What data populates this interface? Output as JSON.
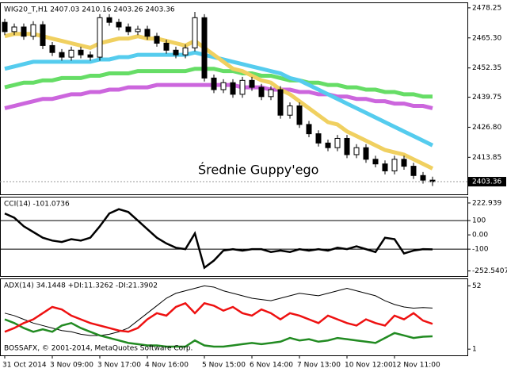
{
  "chart_data": [
    {
      "type": "candlestick",
      "title": "WIG20_T,H1  2407.03 2410.16 2403.26 2403.36",
      "annotation": "Średnie Guppy'ego",
      "ylim": [
        2397.9,
        2480.6
      ],
      "yticks": [
        2478.25,
        {
          "value": 2465.3,
          "label": "2465.30"
        },
        2452.35,
        2439.75,
        {
          "value": 2426.8,
          "label": "2426.80"
        },
        2413.85
      ],
      "open": [
        2472,
        2468,
        2470,
        2466,
        2471,
        2462,
        2459,
        2457,
        2460,
        2458,
        2457,
        2474,
        2472,
        2470,
        2468,
        2469,
        2466,
        2463,
        2460,
        2458,
        2461,
        2474,
        2448,
        2443,
        2446,
        2441,
        2447,
        2444,
        2440,
        2443,
        2432,
        2436,
        2428,
        2424,
        2420,
        2418,
        2422,
        2415,
        2418,
        2413,
        2411,
        2408,
        2413,
        2410,
        2406,
        2404
      ],
      "high": [
        2473.5,
        2471.5,
        2471.5,
        2472.5,
        2472.5,
        2463.5,
        2460.5,
        2461.5,
        2461.5,
        2459.5,
        2475.5,
        2475.5,
        2473.5,
        2471.5,
        2470.5,
        2470.5,
        2467.5,
        2464.5,
        2461.5,
        2462.5,
        2476.5,
        2475.5,
        2449.5,
        2447.5,
        2447.5,
        2448.5,
        2448.5,
        2445.5,
        2444.5,
        2444.5,
        2437.5,
        2437.5,
        2429.5,
        2425.5,
        2421.5,
        2423.5,
        2423.5,
        2419.5,
        2419.5,
        2414.5,
        2412.5,
        2414.5,
        2414.5,
        2411.5,
        2407.5,
        2405.5
      ],
      "low": [
        2466.5,
        2466.5,
        2464.5,
        2464.5,
        2460.5,
        2457.5,
        2455.5,
        2455.5,
        2456.5,
        2455.5,
        2455.5,
        2470.5,
        2468.5,
        2466.5,
        2466.5,
        2464.5,
        2461.5,
        2458.5,
        2456.5,
        2456.5,
        2459.5,
        2446.5,
        2441.5,
        2441.5,
        2439.5,
        2439.5,
        2442.5,
        2438.5,
        2438.5,
        2430.5,
        2430.5,
        2426.5,
        2422.5,
        2418.5,
        2416.5,
        2416.5,
        2413.5,
        2413.5,
        2411.5,
        2409.5,
        2406.5,
        2406.5,
        2408.5,
        2404.5,
        2402.5,
        2401.5
      ],
      "close": [
        2468,
        2470,
        2466,
        2471,
        2462,
        2459,
        2457,
        2460,
        2458,
        2457,
        2474,
        2472,
        2470,
        2468,
        2469,
        2466,
        2463,
        2460,
        2458,
        2461,
        2474,
        2448,
        2443,
        2446,
        2441,
        2447,
        2444,
        2440,
        2443,
        2432,
        2436,
        2428,
        2424,
        2420,
        2418,
        2422,
        2415,
        2418,
        2413,
        2411,
        2408,
        2413,
        2410,
        2406,
        2404,
        2403.36
      ],
      "ribbons": [
        {
          "color": "#cc66dd",
          "values": [
            2435,
            2436,
            2437,
            2438,
            2439,
            2439,
            2440,
            2441,
            2441,
            2442,
            2442,
            2443,
            2443,
            2444,
            2444,
            2444,
            2445,
            2445,
            2445,
            2445,
            2445,
            2445,
            2445,
            2445,
            2445,
            2444,
            2444,
            2444,
            2443,
            2443,
            2443,
            2442,
            2442,
            2441,
            2441,
            2440,
            2440,
            2439,
            2439,
            2438,
            2438,
            2437,
            2437,
            2436,
            2436,
            2435
          ]
        },
        {
          "color": "#66dd66",
          "values": [
            2444,
            2445,
            2446,
            2446,
            2447,
            2447,
            2448,
            2448,
            2448,
            2449,
            2449,
            2450,
            2450,
            2450,
            2451,
            2451,
            2451,
            2451,
            2451,
            2451,
            2452,
            2452,
            2452,
            2451,
            2451,
            2450,
            2450,
            2449,
            2449,
            2448,
            2447,
            2447,
            2446,
            2446,
            2445,
            2445,
            2444,
            2444,
            2443,
            2443,
            2442,
            2442,
            2441,
            2441,
            2440,
            2440
          ]
        },
        {
          "color": "#55ccee",
          "values": [
            2452,
            2453,
            2454,
            2455,
            2455,
            2455,
            2455,
            2455,
            2455,
            2455,
            2456,
            2456,
            2457,
            2457,
            2458,
            2458,
            2458,
            2458,
            2458,
            2458,
            2459,
            2458,
            2457,
            2456,
            2455,
            2454,
            2453,
            2452,
            2451,
            2450,
            2448,
            2447,
            2445,
            2443,
            2441,
            2439,
            2437,
            2435,
            2433,
            2431,
            2429,
            2427,
            2425,
            2423,
            2421,
            2419
          ]
        },
        {
          "color": "#f0d060",
          "values": [
            2466,
            2467,
            2467,
            2467,
            2466,
            2465,
            2464,
            2463,
            2462,
            2461,
            2463,
            2464,
            2465,
            2465,
            2466,
            2465,
            2465,
            2464,
            2463,
            2462,
            2464,
            2461,
            2458,
            2455,
            2452,
            2451,
            2449,
            2447,
            2446,
            2443,
            2441,
            2438,
            2435,
            2432,
            2429,
            2428,
            2425,
            2423,
            2421,
            2419,
            2417,
            2416,
            2415,
            2413,
            2411,
            2409
          ]
        }
      ]
    },
    {
      "type": "line",
      "title": "CCI(14) -101.0736",
      "ylim": [
        -288,
        267
      ],
      "yticks": [
        222.939,
        100,
        {
          "value": 0,
          "label": "0.00"
        },
        -100,
        -252.5407
      ],
      "levels": [
        100,
        -100
      ],
      "series": [
        {
          "color": "#000000",
          "values": [
            150,
            120,
            60,
            20,
            -20,
            -40,
            -50,
            -30,
            -40,
            -20,
            60,
            150,
            180,
            160,
            100,
            40,
            -20,
            -60,
            -90,
            -100,
            10,
            -230,
            -180,
            -110,
            -100,
            -110,
            -100,
            -100,
            -120,
            -110,
            -120,
            -100,
            -110,
            -100,
            -110,
            -90,
            -100,
            -80,
            -100,
            -120,
            -20,
            -30,
            -130,
            -110,
            -100,
            -101.0736
          ]
        }
      ]
    },
    {
      "type": "line",
      "title": "ADX(14) 34.1448 +DI:11.3262 -DI:21.3902",
      "footer": "BOSSAFX, © 2001-2014, MetaQuotes Software Corp.",
      "ylim": [
        -4,
        58
      ],
      "yticks": [
        52,
        1
      ],
      "categories": [
        "31 Oct 2014",
        null,
        null,
        null,
        null,
        "3 Nov 09:00",
        null,
        null,
        null,
        null,
        "3 Nov 17:00",
        null,
        null,
        null,
        null,
        "4 Nov 16:00",
        null,
        null,
        null,
        null,
        null,
        "5 Nov 15:00",
        null,
        null,
        null,
        null,
        "6 Nov 14:00",
        null,
        null,
        null,
        null,
        "7 Nov 13:00",
        null,
        null,
        null,
        null,
        "10 Nov 12:00",
        null,
        null,
        null,
        null,
        "12 Nov 11:00",
        null,
        null,
        null,
        null
      ],
      "series": [
        {
          "color": "#000000",
          "values": [
            30,
            28,
            25,
            22,
            20,
            18,
            16,
            15,
            13,
            12,
            12,
            13,
            15,
            18,
            24,
            30,
            36,
            42,
            46,
            48,
            50,
            52,
            51,
            48,
            46,
            44,
            42,
            41,
            40,
            42,
            44,
            46,
            45,
            44,
            46,
            48,
            50,
            48,
            46,
            44,
            40,
            37,
            35,
            34,
            34.5,
            34.1448
          ]
        },
        {
          "color": "#228b22",
          "values": [
            25,
            22,
            18,
            15,
            17,
            15,
            20,
            22,
            18,
            15,
            12,
            10,
            8,
            6,
            5,
            4,
            4,
            3,
            3,
            3,
            8,
            4,
            3,
            3,
            4,
            5,
            6,
            5,
            6,
            7,
            10,
            8,
            9,
            7,
            8,
            10,
            9,
            8,
            7,
            6,
            10,
            14,
            12,
            10,
            11,
            11.3262
          ]
        },
        {
          "color": "#ee1111",
          "values": [
            15,
            18,
            22,
            25,
            30,
            35,
            33,
            28,
            25,
            22,
            20,
            18,
            16,
            15,
            18,
            25,
            30,
            28,
            35,
            38,
            30,
            38,
            36,
            32,
            35,
            30,
            28,
            33,
            30,
            25,
            30,
            28,
            25,
            22,
            28,
            25,
            22,
            20,
            25,
            22,
            20,
            28,
            25,
            30,
            24,
            21.3902
          ]
        }
      ]
    }
  ]
}
